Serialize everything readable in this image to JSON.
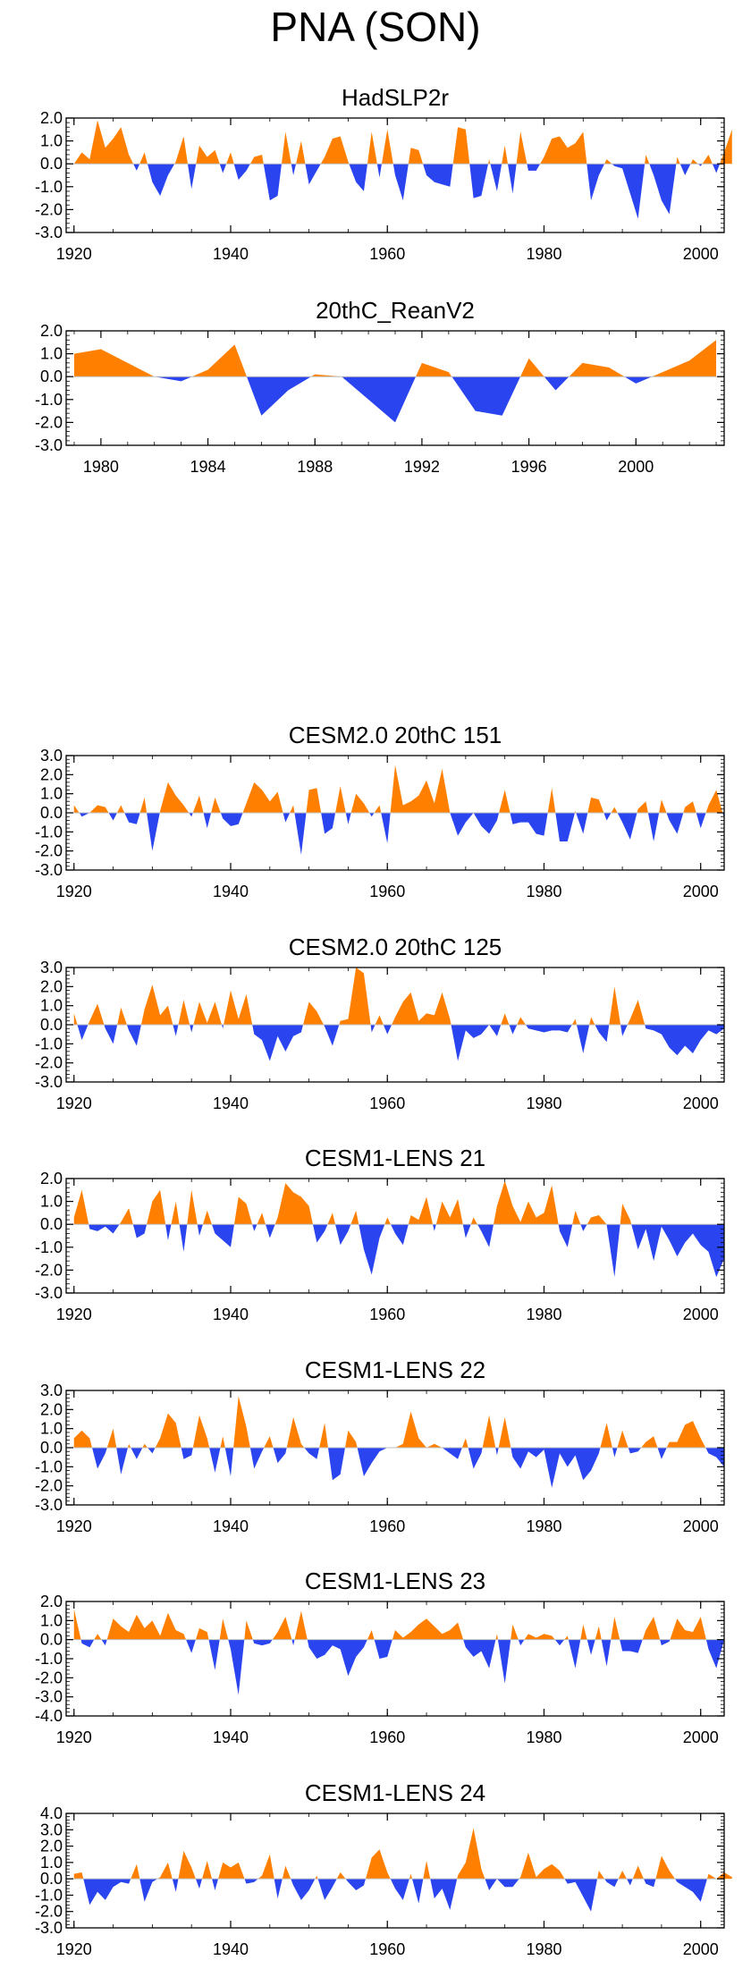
{
  "title": "PNA (SON)",
  "colors": {
    "positive": "#ff8000",
    "negative": "#2a44f0",
    "axis": "#000000",
    "zero_line": "#bfbfbf"
  },
  "chart_data": [
    {
      "type": "area",
      "title": "HadSLP2r",
      "xlim": [
        1919,
        2003
      ],
      "ylim": [
        -3,
        2
      ],
      "yticks": [
        2,
        1,
        0,
        -1,
        -2,
        -3
      ],
      "ytick_labels": [
        "2.0",
        "1.0",
        "0.0",
        "-1.0",
        "-2.0",
        "-3.0"
      ],
      "xticks": [
        1920,
        1940,
        1960,
        1980,
        2000
      ],
      "xtick_labels": [
        "1920",
        "1940",
        "1960",
        "1980",
        "2000"
      ],
      "x_start": 1920,
      "values": [
        0.0,
        0.5,
        0.2,
        1.9,
        0.7,
        1.1,
        1.6,
        0.4,
        -0.3,
        0.5,
        -0.8,
        -1.4,
        -0.5,
        0.1,
        1.2,
        -1.1,
        0.8,
        0.3,
        0.6,
        -0.4,
        0.5,
        -0.7,
        -0.3,
        0.3,
        0.4,
        -1.6,
        -1.4,
        1.4,
        -0.5,
        1.0,
        -0.9,
        -0.3,
        0.3,
        1.1,
        1.2,
        0.1,
        -0.8,
        -1.2,
        1.4,
        -0.6,
        1.5,
        -0.5,
        -1.6,
        0.7,
        0.6,
        -0.5,
        -0.8,
        -0.9,
        -1.0,
        1.6,
        1.5,
        -1.5,
        -1.4,
        0.2,
        -1.2,
        0.8,
        -1.3,
        1.4,
        -0.3,
        -0.3,
        0.3,
        1.1,
        1.2,
        0.7,
        0.9,
        1.4,
        -1.6,
        -0.5,
        0.2,
        -0.1,
        -0.2,
        -1.3,
        -2.4,
        0.4,
        -0.5,
        -1.6,
        -2.2,
        0.3,
        -0.5,
        0.2,
        -0.1,
        0.4,
        -0.4,
        0.5,
        1.5
      ]
    },
    {
      "type": "area",
      "title": "20thC_ReanV2",
      "xlim": [
        1978.7,
        2003.3
      ],
      "ylim": [
        -3,
        2
      ],
      "yticks": [
        2,
        1,
        0,
        -1,
        -2,
        -3
      ],
      "ytick_labels": [
        "2.0",
        "1.0",
        "0.0",
        "-1.0",
        "-2.0",
        "-3.0"
      ],
      "xticks": [
        1980,
        1984,
        1988,
        1992,
        1996,
        2000
      ],
      "xtick_labels": [
        "1980",
        "1984",
        "1988",
        "1992",
        "1996",
        "2000"
      ],
      "x_start": 1979,
      "values": [
        1.0,
        1.2,
        0.6,
        0.0,
        -0.2,
        0.3,
        1.4,
        -1.7,
        -0.6,
        0.1,
        0.0,
        -1.0,
        -2.0,
        0.6,
        0.2,
        -1.5,
        -1.7,
        0.8,
        -0.6,
        0.6,
        0.4,
        -0.3,
        0.2,
        0.7,
        1.6
      ]
    },
    {
      "type": "area",
      "title": "CESM2.0 20thC 151",
      "xlim": [
        1919,
        2003
      ],
      "ylim": [
        -3,
        3
      ],
      "yticks": [
        3,
        2,
        1,
        0,
        -1,
        -2,
        -3
      ],
      "ytick_labels": [
        "3.0",
        "2.0",
        "1.0",
        "0.0",
        "-1.0",
        "-2.0",
        "-3.0"
      ],
      "xticks": [
        1920,
        1940,
        1960,
        1980,
        2000
      ],
      "xtick_labels": [
        "1920",
        "1940",
        "1960",
        "1980",
        "2000"
      ],
      "x_start": 1920,
      "values": [
        0.4,
        -0.2,
        0.0,
        0.4,
        0.3,
        -0.4,
        0.4,
        -0.5,
        -0.6,
        0.8,
        -2.0,
        0.1,
        1.6,
        0.9,
        0.4,
        -0.2,
        0.9,
        -0.8,
        0.8,
        -0.3,
        -0.7,
        -0.6,
        0.5,
        1.6,
        1.2,
        0.6,
        1.1,
        -0.5,
        0.4,
        -2.2,
        1.2,
        1.3,
        -1.1,
        -0.8,
        1.4,
        -0.6,
        1.0,
        0.5,
        -0.2,
        0.4,
        -1.6,
        2.5,
        0.4,
        0.6,
        0.9,
        1.7,
        0.5,
        2.3,
        0.0,
        -1.2,
        -0.5,
        0.0,
        -0.7,
        -1.1,
        -0.4,
        1.2,
        -0.6,
        -0.5,
        -0.5,
        -1.1,
        -1.2,
        1.3,
        -1.5,
        -1.5,
        0.1,
        -1.1,
        0.8,
        0.7,
        -0.4,
        0.3,
        -0.5,
        -1.4,
        0.2,
        0.6,
        -1.5,
        0.7,
        -0.4,
        -1.1,
        0.3,
        0.6,
        -0.8,
        0.4,
        1.2,
        -0.3
      ]
    },
    {
      "type": "area",
      "title": "CESM2.0 20thC 125",
      "xlim": [
        1919,
        2003
      ],
      "ylim": [
        -3,
        3
      ],
      "yticks": [
        3,
        2,
        1,
        0,
        -1,
        -2,
        -3
      ],
      "ytick_labels": [
        "3.0",
        "2.0",
        "1.0",
        "0.0",
        "-1.0",
        "-2.0",
        "-3.0"
      ],
      "xticks": [
        1920,
        1940,
        1960,
        1980,
        2000
      ],
      "xtick_labels": [
        "1920",
        "1940",
        "1960",
        "1980",
        "2000"
      ],
      "x_start": 1920,
      "values": [
        0.6,
        -0.8,
        0.2,
        1.1,
        -0.2,
        -1.0,
        0.9,
        -0.3,
        -1.1,
        0.8,
        2.1,
        0.5,
        1.0,
        -0.6,
        1.3,
        -0.4,
        1.2,
        0.1,
        1.2,
        -0.2,
        1.8,
        0.3,
        1.6,
        -0.5,
        -0.8,
        -1.9,
        -0.6,
        -1.4,
        -0.6,
        -0.4,
        1.2,
        0.7,
        -0.1,
        -1.1,
        0.2,
        0.3,
        3.0,
        2.7,
        -0.4,
        0.5,
        -0.5,
        0.4,
        1.2,
        1.7,
        0.2,
        0.6,
        0.5,
        1.7,
        0.3,
        -1.9,
        -0.3,
        -0.7,
        -0.5,
        0.0,
        -0.6,
        0.6,
        -0.5,
        0.4,
        -0.2,
        -0.3,
        -0.4,
        -0.3,
        -0.3,
        -0.4,
        0.3,
        -1.5,
        0.4,
        -0.4,
        -0.9,
        2.0,
        -0.6,
        0.3,
        1.3,
        -0.2,
        -0.3,
        -0.5,
        -1.2,
        -1.6,
        -1.1,
        -1.5,
        -0.8,
        -0.3,
        -0.5,
        -0.2
      ]
    },
    {
      "type": "area",
      "title": "CESM1-LENS 21",
      "xlim": [
        1919,
        2003
      ],
      "ylim": [
        -3,
        2
      ],
      "yticks": [
        2,
        1,
        0,
        -1,
        -2,
        -3
      ],
      "ytick_labels": [
        "2.0",
        "1.0",
        "0.0",
        "-1.0",
        "-2.0",
        "-3.0"
      ],
      "xticks": [
        1920,
        1940,
        1960,
        1980,
        2000
      ],
      "xtick_labels": [
        "1920",
        "1940",
        "1960",
        "1980",
        "2000"
      ],
      "x_start": 1920,
      "values": [
        0.3,
        1.5,
        -0.2,
        -0.3,
        -0.1,
        -0.4,
        0.1,
        0.7,
        -0.6,
        -0.4,
        1.0,
        1.5,
        -0.7,
        1.0,
        -1.2,
        1.5,
        -0.5,
        0.6,
        -0.4,
        -0.7,
        -1.0,
        1.2,
        0.9,
        -0.3,
        0.5,
        -0.6,
        0.3,
        1.8,
        1.4,
        1.2,
        0.8,
        -0.8,
        -0.3,
        0.5,
        -0.9,
        -0.3,
        0.6,
        -1.1,
        -2.2,
        -0.6,
        0.3,
        -0.4,
        -0.9,
        0.4,
        0.2,
        1.2,
        -0.3,
        1.0,
        0.3,
        1.1,
        -0.6,
        0.3,
        -0.3,
        -1.0,
        0.8,
        1.9,
        0.8,
        0.1,
        1.0,
        0.3,
        0.5,
        1.7,
        -0.3,
        -1.0,
        0.6,
        -0.3,
        0.3,
        0.4,
        0.0,
        -2.3,
        0.9,
        0.2,
        -1.1,
        -0.2,
        -1.6,
        -0.1,
        -0.7,
        -1.4,
        -0.8,
        -0.4,
        -0.9,
        -1.2,
        -2.3,
        -1.5
      ]
    },
    {
      "type": "area",
      "title": "CESM1-LENS 22",
      "xlim": [
        1919,
        2003
      ],
      "ylim": [
        -3,
        3
      ],
      "yticks": [
        3,
        2,
        1,
        0,
        -1,
        -2,
        -3
      ],
      "ytick_labels": [
        "3.0",
        "2.0",
        "1.0",
        "0.0",
        "-1.0",
        "-2.0",
        "-3.0"
      ],
      "xticks": [
        1920,
        1940,
        1960,
        1980,
        2000
      ],
      "xtick_labels": [
        "1920",
        "1940",
        "1960",
        "1980",
        "2000"
      ],
      "x_start": 1920,
      "values": [
        0.5,
        0.9,
        0.5,
        -1.1,
        -0.3,
        1.0,
        -1.4,
        0.2,
        -0.6,
        0.2,
        -0.3,
        0.5,
        1.8,
        1.3,
        -0.6,
        -0.4,
        1.7,
        0.5,
        -1.3,
        0.6,
        -1.5,
        2.7,
        1.1,
        -1.1,
        -0.2,
        0.6,
        -0.8,
        -0.3,
        1.6,
        0.2,
        -0.3,
        -0.6,
        1.3,
        -1.7,
        -1.4,
        0.9,
        0.3,
        -1.5,
        -0.8,
        -0.2,
        0.0,
        0.0,
        0.2,
        1.9,
        0.5,
        0.0,
        0.2,
        0.0,
        -0.3,
        -0.6,
        0.5,
        -1.1,
        -0.3,
        1.7,
        -0.4,
        1.6,
        -0.5,
        -1.1,
        -0.2,
        -0.5,
        -0.1,
        -2.1,
        -0.3,
        -1.0,
        -0.4,
        -1.7,
        -1.2,
        -0.3,
        1.3,
        -0.5,
        0.9,
        -0.3,
        -0.2,
        0.3,
        0.6,
        -0.6,
        0.3,
        0.3,
        1.2,
        1.4,
        0.5,
        -0.3,
        -0.5,
        -1.0
      ]
    },
    {
      "type": "area",
      "title": "CESM1-LENS 23",
      "xlim": [
        1919,
        2003
      ],
      "ylim": [
        -4,
        2
      ],
      "yticks": [
        2,
        1,
        0,
        -1,
        -2,
        -3,
        -4
      ],
      "ytick_labels": [
        "2.0",
        "1.0",
        "0.0",
        "-1.0",
        "-2.0",
        "-3.0",
        "-4.0"
      ],
      "xticks": [
        1920,
        1940,
        1960,
        1980,
        2000
      ],
      "xtick_labels": [
        "1920",
        "1940",
        "1960",
        "1980",
        "2000"
      ],
      "x_start": 1920,
      "values": [
        1.6,
        -0.2,
        -0.4,
        0.3,
        -0.3,
        1.1,
        0.7,
        0.4,
        1.3,
        0.6,
        1.0,
        0.2,
        1.4,
        0.5,
        0.3,
        -0.7,
        0.6,
        0.4,
        -1.6,
        1.1,
        -0.5,
        -2.9,
        1.0,
        -0.2,
        -0.3,
        -0.2,
        0.4,
        1.2,
        -0.3,
        1.5,
        -0.4,
        -1.0,
        -0.8,
        -0.3,
        -0.5,
        -1.9,
        -0.9,
        -0.4,
        0.5,
        -1.0,
        -0.9,
        0.5,
        0.1,
        0.4,
        0.8,
        1.1,
        0.7,
        0.3,
        0.5,
        0.9,
        -0.4,
        -0.9,
        -0.6,
        -1.5,
        0.3,
        -2.3,
        0.8,
        -0.3,
        0.3,
        0.1,
        0.3,
        0.2,
        -0.3,
        0.2,
        -1.5,
        0.8,
        -0.8,
        0.7,
        -1.4,
        1.2,
        -0.6,
        -0.6,
        -0.7,
        0.5,
        1.2,
        -0.3,
        -0.1,
        1.1,
        0.5,
        0.4,
        1.2,
        -0.5,
        -1.5,
        0.0
      ]
    },
    {
      "type": "area",
      "title": "CESM1-LENS 24",
      "xlim": [
        1919,
        2003
      ],
      "ylim": [
        -3,
        4
      ],
      "yticks": [
        4,
        3,
        2,
        1,
        0,
        -1,
        -2,
        -3
      ],
      "ytick_labels": [
        "4.0",
        "3.0",
        "2.0",
        "1.0",
        "0.0",
        "-1.0",
        "-2.0",
        "-3.0"
      ],
      "xticks": [
        1920,
        1940,
        1960,
        1980,
        2000
      ],
      "xtick_labels": [
        "1920",
        "1940",
        "1960",
        "1980",
        "2000"
      ],
      "x_start": 1920,
      "values": [
        0.3,
        0.4,
        -1.6,
        -0.8,
        -1.3,
        -0.5,
        -0.2,
        -0.3,
        0.9,
        -1.4,
        -0.2,
        0.1,
        1.0,
        -0.8,
        1.7,
        0.7,
        -0.6,
        1.1,
        -0.7,
        1.0,
        0.7,
        1.0,
        -0.3,
        -0.2,
        0.2,
        1.5,
        -1.2,
        0.8,
        -0.4,
        -1.3,
        -0.7,
        0.2,
        -1.3,
        -0.5,
        0.4,
        -0.2,
        -0.7,
        -0.4,
        1.3,
        1.8,
        0.4,
        -0.6,
        -1.3,
        0.3,
        -1.5,
        1.1,
        -1.2,
        -0.6,
        -1.9,
        0.2,
        1.0,
        3.1,
        0.6,
        -0.7,
        0.0,
        -0.5,
        -0.5,
        0.1,
        1.6,
        0.1,
        0.6,
        0.9,
        0.5,
        -0.3,
        -0.2,
        -1.1,
        -2.0,
        0.5,
        -0.2,
        -0.5,
        0.5,
        -0.4,
        0.8,
        -0.3,
        -0.5,
        1.4,
        0.5,
        -0.2,
        -0.5,
        -0.8,
        -1.4,
        0.3,
        0.0,
        0.4,
        0.1
      ]
    }
  ]
}
